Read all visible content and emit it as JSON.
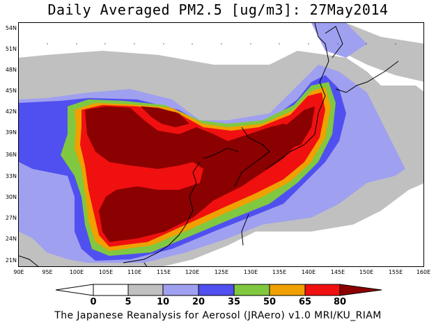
{
  "title": "Daily Averaged PM2.5 [ug/m3]: 27May2014",
  "footer": "The Japanese Reanalysis for Aerosol (JRAero) v1.0 MRI/KU_RIAM",
  "lat_labels": [
    "54N",
    "51N",
    "48N",
    "45N",
    "42N",
    "39N",
    "36N",
    "33N",
    "30N",
    "27N",
    "24N",
    "21N"
  ],
  "lon_labels": [
    "90E",
    "95E",
    "100E",
    "105E",
    "110E",
    "115E",
    "120E",
    "125E",
    "130E",
    "135E",
    "140E",
    "145E",
    "150E",
    "155E",
    "160E"
  ],
  "colorbar": {
    "levels": [
      "0",
      "5",
      "10",
      "20",
      "35",
      "50",
      "65",
      "80"
    ],
    "colors": [
      "#ffffff",
      "#c0c0c0",
      "#a0a0f0",
      "#5050f0",
      "#80c840",
      "#f0a000",
      "#f01010",
      "#8b0000"
    ]
  }
}
